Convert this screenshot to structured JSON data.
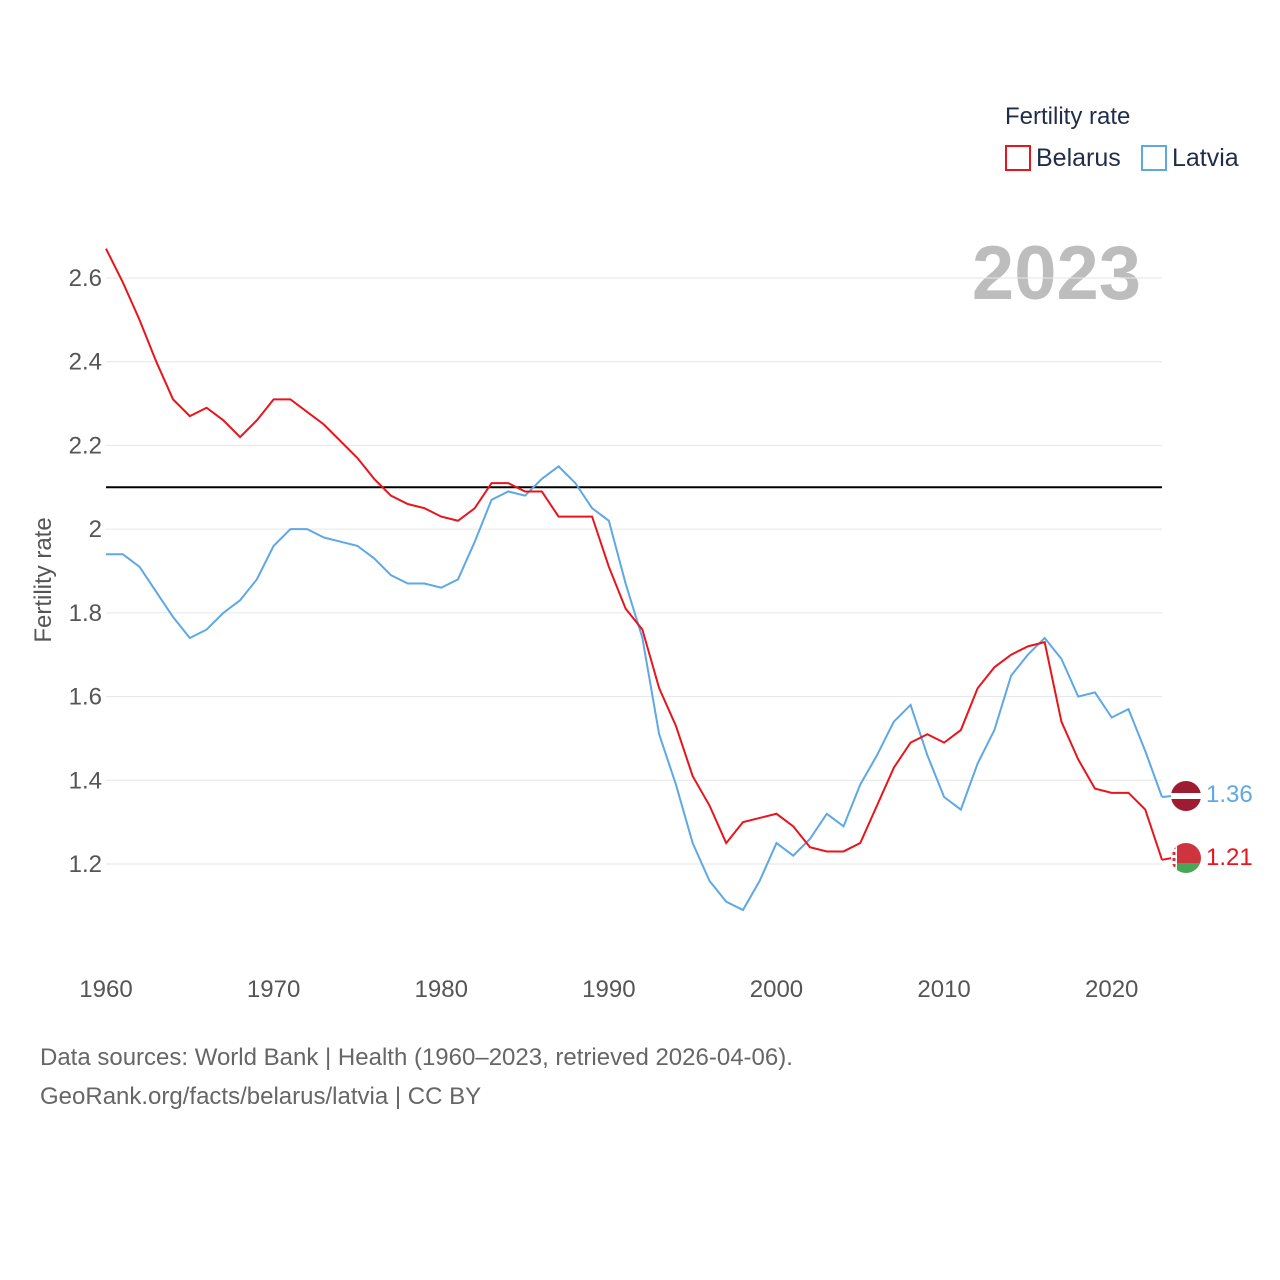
{
  "chart_data": {
    "type": "line",
    "title": "",
    "current_year": "2023",
    "ylabel": "Fertility rate",
    "xlabel": "",
    "legend": {
      "title": "Fertility rate",
      "placement": "top-right"
    },
    "x_ticks": [
      "1960",
      "1970",
      "1980",
      "1990",
      "2000",
      "2010",
      "2020"
    ],
    "y_ticks": [
      "1.2",
      "1.4",
      "1.6",
      "1.8",
      "2",
      "2.2",
      "2.4",
      "2.6"
    ],
    "xlim": [
      1960,
      2023
    ],
    "ylim": [
      1.0,
      2.7
    ],
    "reference_line": {
      "value": 2.1,
      "color": "#000000"
    },
    "x": [
      1960,
      1961,
      1962,
      1963,
      1964,
      1965,
      1966,
      1967,
      1968,
      1969,
      1970,
      1971,
      1972,
      1973,
      1974,
      1975,
      1976,
      1977,
      1978,
      1979,
      1980,
      1981,
      1982,
      1983,
      1984,
      1985,
      1986,
      1987,
      1988,
      1989,
      1990,
      1991,
      1992,
      1993,
      1994,
      1995,
      1996,
      1997,
      1998,
      1999,
      2000,
      2001,
      2002,
      2003,
      2004,
      2005,
      2006,
      2007,
      2008,
      2009,
      2010,
      2011,
      2012,
      2013,
      2014,
      2015,
      2016,
      2017,
      2018,
      2019,
      2020,
      2021,
      2022,
      2023
    ],
    "series": [
      {
        "name": "Belarus",
        "color": "#e8151c",
        "end_label": "1.21",
        "flag": "belarus-flag",
        "values": [
          2.67,
          2.59,
          2.5,
          2.4,
          2.31,
          2.27,
          2.29,
          2.26,
          2.22,
          2.26,
          2.31,
          2.31,
          2.28,
          2.25,
          2.21,
          2.17,
          2.12,
          2.08,
          2.06,
          2.05,
          2.03,
          2.02,
          2.05,
          2.11,
          2.11,
          2.09,
          2.09,
          2.03,
          2.03,
          2.03,
          1.91,
          1.81,
          1.76,
          1.62,
          1.53,
          1.41,
          1.34,
          1.25,
          1.3,
          1.31,
          1.32,
          1.29,
          1.24,
          1.23,
          1.23,
          1.25,
          1.34,
          1.43,
          1.49,
          1.51,
          1.49,
          1.52,
          1.62,
          1.67,
          1.7,
          1.72,
          1.73,
          1.54,
          1.45,
          1.38,
          1.37,
          1.37,
          1.33,
          1.21
        ]
      },
      {
        "name": "Latvia",
        "color": "#5ea8e5",
        "end_label": "1.36",
        "flag": "latvia-flag",
        "values": [
          1.94,
          1.94,
          1.91,
          1.85,
          1.79,
          1.74,
          1.76,
          1.8,
          1.83,
          1.88,
          1.96,
          2.0,
          2.0,
          1.98,
          1.97,
          1.96,
          1.93,
          1.89,
          1.87,
          1.87,
          1.86,
          1.88,
          1.97,
          2.07,
          2.09,
          2.08,
          2.12,
          2.15,
          2.11,
          2.05,
          2.02,
          1.87,
          1.74,
          1.51,
          1.39,
          1.25,
          1.16,
          1.11,
          1.09,
          1.16,
          1.25,
          1.22,
          1.26,
          1.32,
          1.29,
          1.39,
          1.46,
          1.54,
          1.58,
          1.46,
          1.36,
          1.33,
          1.44,
          1.52,
          1.65,
          1.7,
          1.74,
          1.69,
          1.6,
          1.61,
          1.55,
          1.57,
          1.47,
          1.36
        ]
      }
    ]
  },
  "footer": {
    "line1": "Data sources: World Bank | Health (1960–2023, retrieved 2026-04-06).",
    "line2": "GeoRank.org/facts/belarus/latvia | CC BY"
  }
}
